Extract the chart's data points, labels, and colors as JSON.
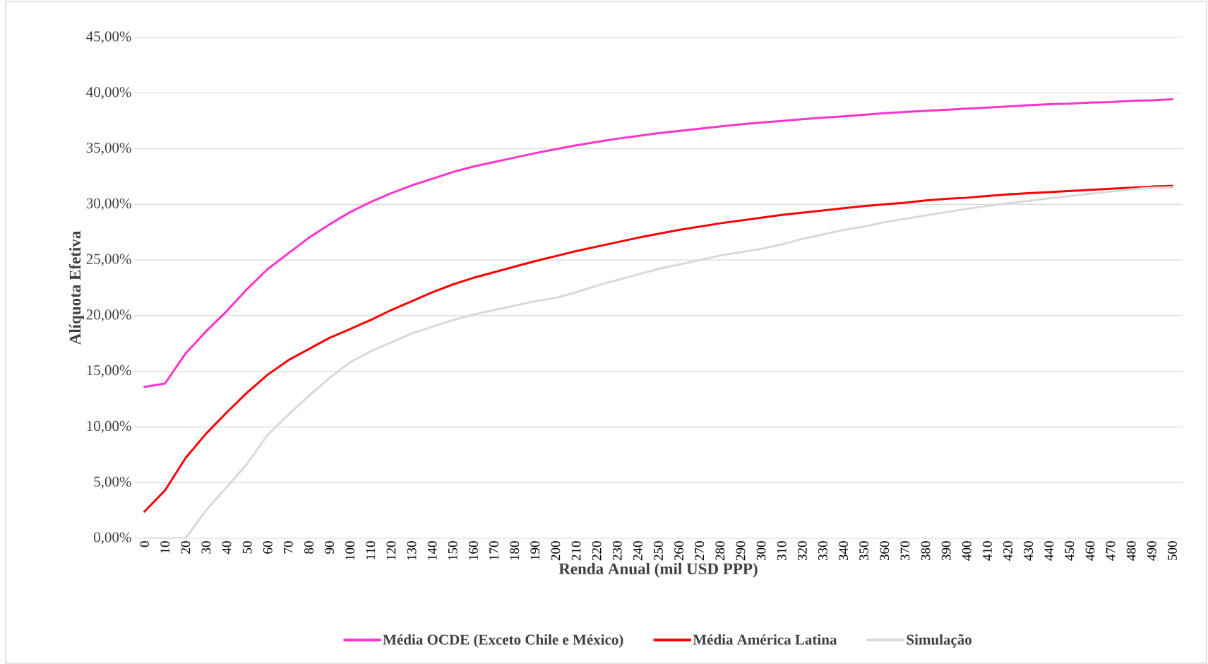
{
  "chart_data": {
    "type": "line",
    "xlabel": "Renda Anual (mil USD PPP)",
    "ylabel": "Alíquota Efetiva",
    "categories": [
      "0",
      "10",
      "20",
      "30",
      "40",
      "50",
      "60",
      "70",
      "80",
      "90",
      "100",
      "110",
      "120",
      "130",
      "140",
      "150",
      "160",
      "170",
      "180",
      "190",
      "200",
      "210",
      "220",
      "230",
      "240",
      "250",
      "260",
      "270",
      "280",
      "290",
      "300",
      "310",
      "320",
      "330",
      "340",
      "350",
      "360",
      "370",
      "380",
      "390",
      "400",
      "410",
      "420",
      "430",
      "440",
      "450",
      "460",
      "470",
      "480",
      "490",
      "500"
    ],
    "series": [
      {
        "name": "Média OCDE (Exceto Chile e México)",
        "color": "#ff33cc",
        "values": [
          13.6,
          13.9,
          16.6,
          18.6,
          20.4,
          22.4,
          24.2,
          25.6,
          27.0,
          28.2,
          29.3,
          30.2,
          31.0,
          31.7,
          32.3,
          32.9,
          33.4,
          33.8,
          34.2,
          34.6,
          34.95,
          35.3,
          35.6,
          35.9,
          36.15,
          36.4,
          36.6,
          36.8,
          37.0,
          37.2,
          37.35,
          37.5,
          37.65,
          37.8,
          37.9,
          38.05,
          38.2,
          38.3,
          38.4,
          38.5,
          38.6,
          38.7,
          38.8,
          38.9,
          39.0,
          39.05,
          39.15,
          39.2,
          39.3,
          39.35,
          39.45
        ]
      },
      {
        "name": "Média América Latina",
        "color": "#ff0000",
        "values": [
          2.4,
          4.3,
          7.2,
          9.4,
          11.3,
          13.1,
          14.7,
          16.0,
          17.0,
          18.0,
          18.8,
          19.6,
          20.5,
          21.3,
          22.1,
          22.8,
          23.4,
          23.9,
          24.4,
          24.9,
          25.35,
          25.8,
          26.2,
          26.6,
          27.0,
          27.35,
          27.7,
          28.0,
          28.3,
          28.55,
          28.8,
          29.05,
          29.25,
          29.45,
          29.65,
          29.85,
          30.0,
          30.15,
          30.35,
          30.5,
          30.6,
          30.75,
          30.9,
          31.0,
          31.1,
          31.2,
          31.3,
          31.4,
          31.5,
          31.6,
          31.65
        ]
      },
      {
        "name": "Simulação",
        "color": "#d9d9d9",
        "values": [
          0,
          0,
          0,
          2.5,
          4.6,
          6.7,
          9.3,
          11.1,
          12.8,
          14.4,
          15.8,
          16.8,
          17.6,
          18.4,
          19.0,
          19.6,
          20.1,
          20.5,
          20.9,
          21.3,
          21.6,
          22.1,
          22.7,
          23.2,
          23.7,
          24.2,
          24.6,
          25.0,
          25.4,
          25.7,
          26.0,
          26.4,
          26.9,
          27.3,
          27.7,
          28.0,
          28.4,
          28.7,
          29.0,
          29.3,
          29.6,
          29.85,
          30.1,
          30.3,
          30.55,
          30.75,
          30.95,
          31.15,
          31.35,
          31.5,
          31.55
        ]
      }
    ],
    "ylim": [
      0,
      45
    ],
    "yticks": [
      {
        "value": 0,
        "label": "0,00%"
      },
      {
        "value": 5,
        "label": "5,00%"
      },
      {
        "value": 10,
        "label": "10,00%"
      },
      {
        "value": 15,
        "label": "15,00%"
      },
      {
        "value": 20,
        "label": "20,00%"
      },
      {
        "value": 25,
        "label": "25,00%"
      },
      {
        "value": 30,
        "label": "30,00%"
      },
      {
        "value": 35,
        "label": "35,00%"
      },
      {
        "value": 40,
        "label": "40,00%"
      },
      {
        "value": 45,
        "label": "45,00%"
      }
    ],
    "grid": "y",
    "legend": "bottom",
    "marker": "none",
    "line_style": "solid"
  }
}
